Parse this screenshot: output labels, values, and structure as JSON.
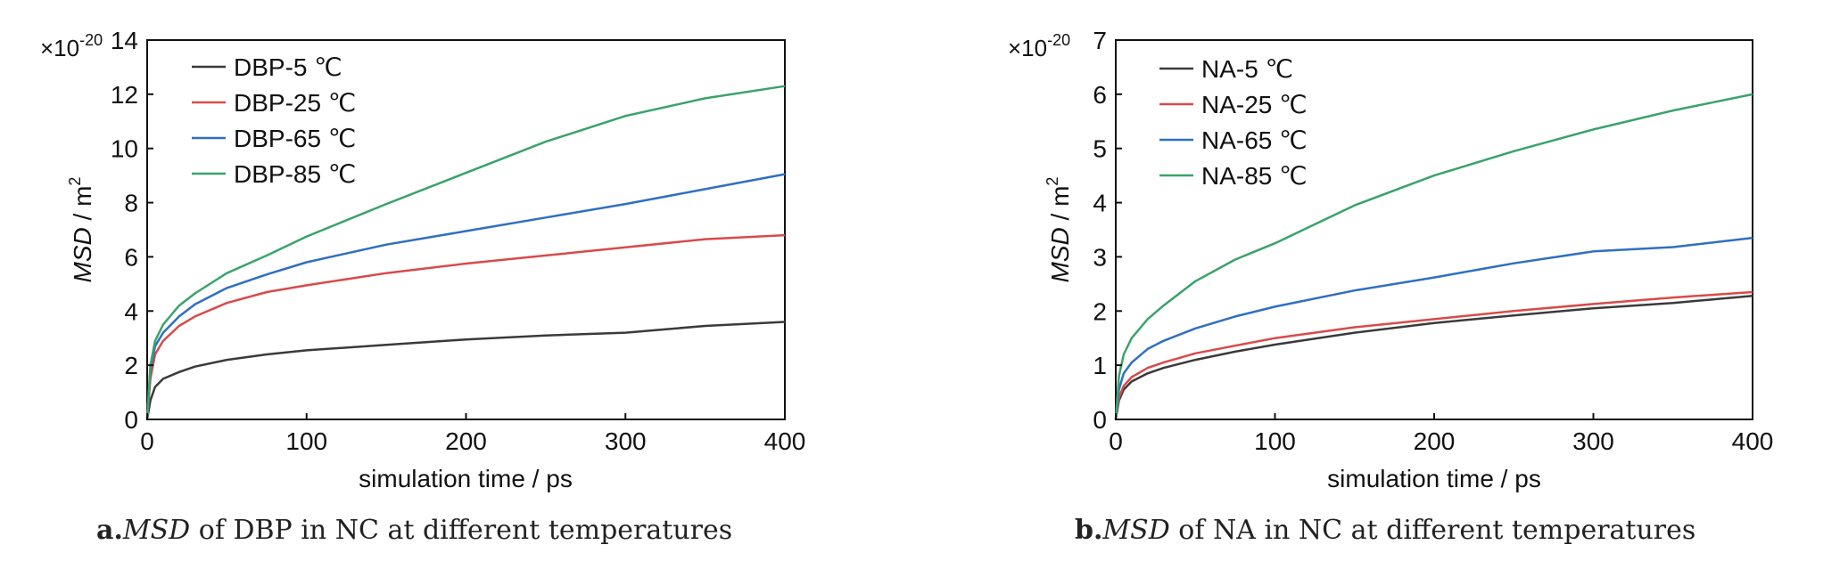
{
  "charts": [
    {
      "caption_label": "a.",
      "caption_italic": "MSD",
      "caption_rest": " of DBP in NC at different temperatures",
      "multiplier_base": "×10",
      "multiplier_exp": "-20",
      "ylabel_italic": "MSD",
      "ylabel_rest": " / m",
      "ylabel_sup": "2",
      "xlabel": "simulation time / ps"
    },
    {
      "caption_label": "b.",
      "caption_italic": "MSD",
      "caption_rest": " of NA in NC at different temperatures",
      "multiplier_base": "×10",
      "multiplier_exp": "-20",
      "ylabel_italic": "MSD",
      "ylabel_rest": " / m",
      "ylabel_sup": "2",
      "xlabel": "simulation time / ps"
    }
  ],
  "colors": {
    "5": "#3a3a3a",
    "25": "#d94a4a",
    "65": "#2f6fc2",
    "85": "#3aa36a"
  },
  "chart_data": [
    {
      "type": "line",
      "xlabel": "simulation time / ps",
      "ylabel": "MSD / m2",
      "xlim": [
        0,
        400
      ],
      "ylim": [
        0,
        14
      ],
      "xticks": [
        "0",
        "100",
        "200",
        "300",
        "400"
      ],
      "yticks": [
        "0",
        "2",
        "4",
        "6",
        "8",
        "10",
        "12",
        "14"
      ],
      "legend_position": "top-left",
      "x": [
        0,
        2,
        5,
        10,
        20,
        30,
        50,
        75,
        100,
        150,
        200,
        250,
        300,
        350,
        400
      ],
      "series": [
        {
          "name": "DBP-5 ℃",
          "color": "#3a3a3a",
          "values": [
            0,
            0.7,
            1.2,
            1.5,
            1.75,
            1.95,
            2.2,
            2.4,
            2.55,
            2.75,
            2.95,
            3.1,
            3.2,
            3.45,
            3.6
          ]
        },
        {
          "name": "DBP-25 ℃",
          "color": "#d94a4a",
          "values": [
            0,
            1.5,
            2.4,
            2.9,
            3.45,
            3.8,
            4.3,
            4.7,
            4.95,
            5.4,
            5.75,
            6.05,
            6.35,
            6.65,
            6.8
          ]
        },
        {
          "name": "DBP-65 ℃",
          "color": "#2f6fc2",
          "values": [
            0,
            1.8,
            2.7,
            3.2,
            3.8,
            4.25,
            4.85,
            5.35,
            5.8,
            6.45,
            6.95,
            7.45,
            7.95,
            8.5,
            9.05
          ]
        },
        {
          "name": "DBP-85 ℃",
          "color": "#3aa36a",
          "values": [
            0,
            2.0,
            2.9,
            3.5,
            4.2,
            4.65,
            5.4,
            6.05,
            6.75,
            7.95,
            9.1,
            10.25,
            11.2,
            11.85,
            12.3
          ]
        }
      ]
    },
    {
      "type": "line",
      "xlabel": "simulation time / ps",
      "ylabel": "MSD / m2",
      "xlim": [
        0,
        400
      ],
      "ylim": [
        0,
        7
      ],
      "xticks": [
        "0",
        "100",
        "200",
        "300",
        "400"
      ],
      "yticks": [
        "0",
        "1",
        "2",
        "3",
        "4",
        "5",
        "6",
        "7"
      ],
      "legend_position": "top-left",
      "x": [
        0,
        2,
        5,
        10,
        20,
        30,
        50,
        75,
        100,
        150,
        200,
        250,
        300,
        350,
        400
      ],
      "series": [
        {
          "name": "NA-5 ℃",
          "color": "#3a3a3a",
          "values": [
            0,
            0.35,
            0.55,
            0.7,
            0.85,
            0.95,
            1.1,
            1.25,
            1.38,
            1.6,
            1.78,
            1.92,
            2.05,
            2.15,
            2.28
          ]
        },
        {
          "name": "NA-25 ℃",
          "color": "#d94a4a",
          "values": [
            0,
            0.4,
            0.62,
            0.78,
            0.95,
            1.05,
            1.22,
            1.36,
            1.5,
            1.7,
            1.85,
            2.0,
            2.13,
            2.25,
            2.35
          ]
        },
        {
          "name": "NA-65 ℃",
          "color": "#2f6fc2",
          "values": [
            0,
            0.55,
            0.85,
            1.05,
            1.3,
            1.45,
            1.68,
            1.9,
            2.08,
            2.38,
            2.62,
            2.88,
            3.1,
            3.18,
            3.35
          ]
        },
        {
          "name": "NA-85 ℃",
          "color": "#3aa36a",
          "values": [
            0,
            0.8,
            1.2,
            1.5,
            1.85,
            2.1,
            2.55,
            2.95,
            3.25,
            3.95,
            4.5,
            4.95,
            5.35,
            5.7,
            6.0
          ]
        }
      ]
    }
  ]
}
